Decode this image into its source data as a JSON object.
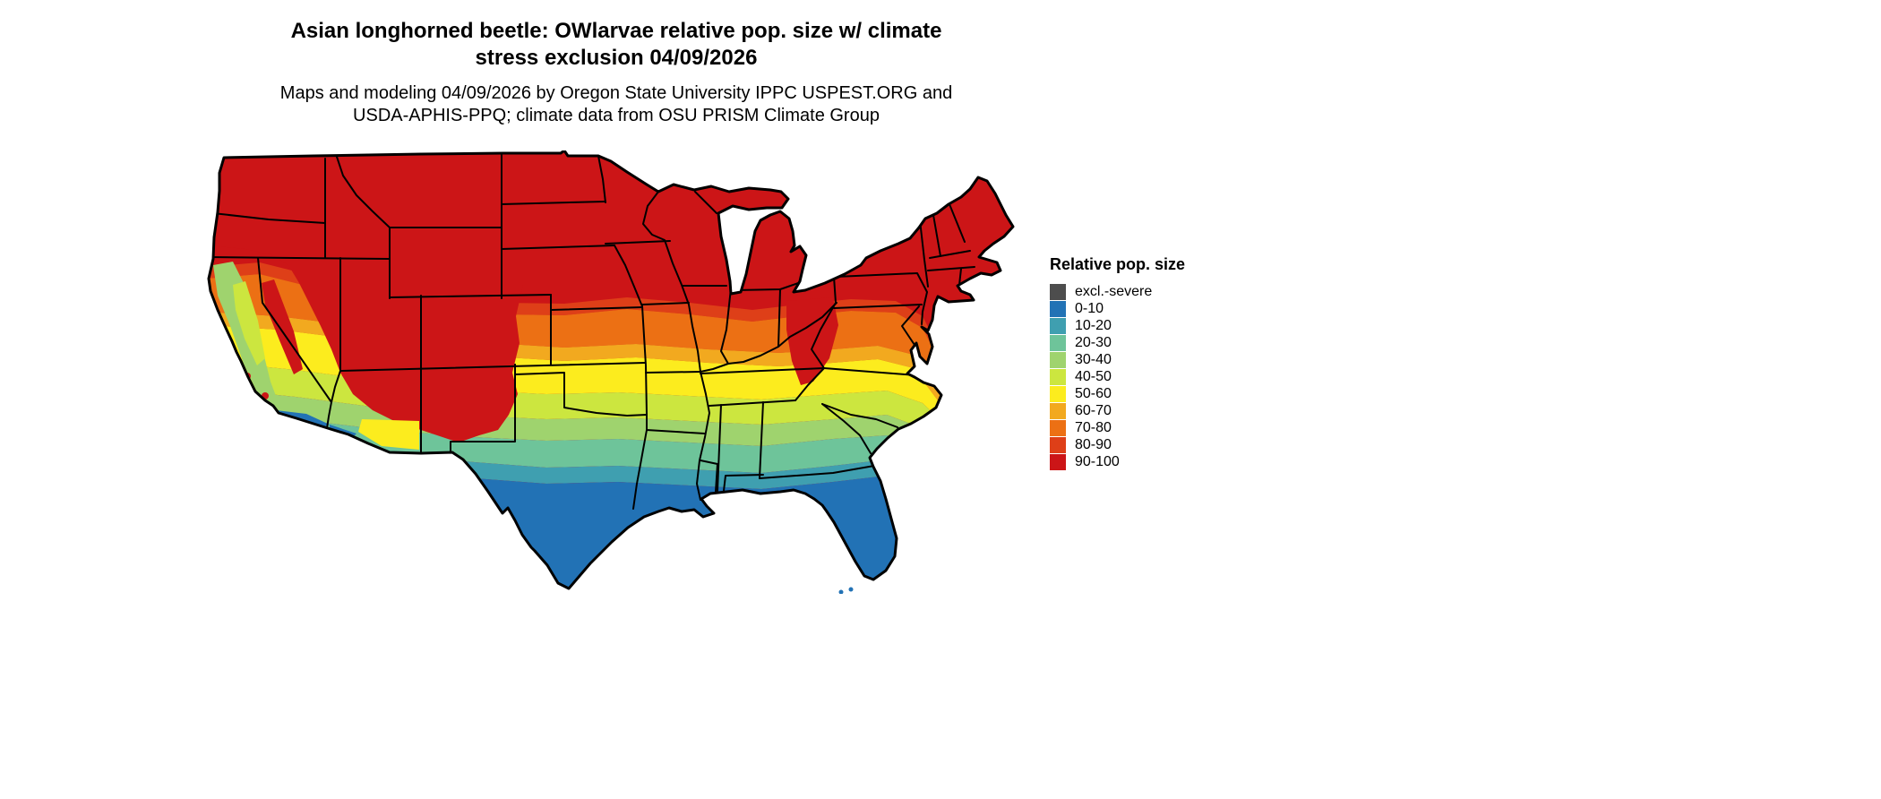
{
  "figure": {
    "title_line1": "Asian longhorned beetle: OWlarvae relative pop. size w/ climate",
    "title_line2": "stress exclusion 04/09/2026",
    "subtitle_line1": "Maps and modeling 04/09/2026 by Oregon State University IPPC USPEST.ORG and",
    "subtitle_line2": "USDA-APHIS-PPQ; climate data from OSU PRISM Climate Group"
  },
  "legend": {
    "title": "Relative pop. size",
    "items": [
      {
        "label": "excl.-severe",
        "color": "#4D4D4D"
      },
      {
        "label": "0-10",
        "color": "#2272B5"
      },
      {
        "label": "10-20",
        "color": "#3F9FB0"
      },
      {
        "label": "20-30",
        "color": "#6EC49A"
      },
      {
        "label": "30-40",
        "color": "#9FD36E"
      },
      {
        "label": "40-50",
        "color": "#CCE63F"
      },
      {
        "label": "50-60",
        "color": "#FCEC1E"
      },
      {
        "label": "60-70",
        "color": "#F2A91F"
      },
      {
        "label": "70-80",
        "color": "#EC7014"
      },
      {
        "label": "80-90",
        "color": "#DE3F18"
      },
      {
        "label": "90-100",
        "color": "#CC1517"
      }
    ]
  },
  "map": {
    "area": "Conterminous United States"
  }
}
